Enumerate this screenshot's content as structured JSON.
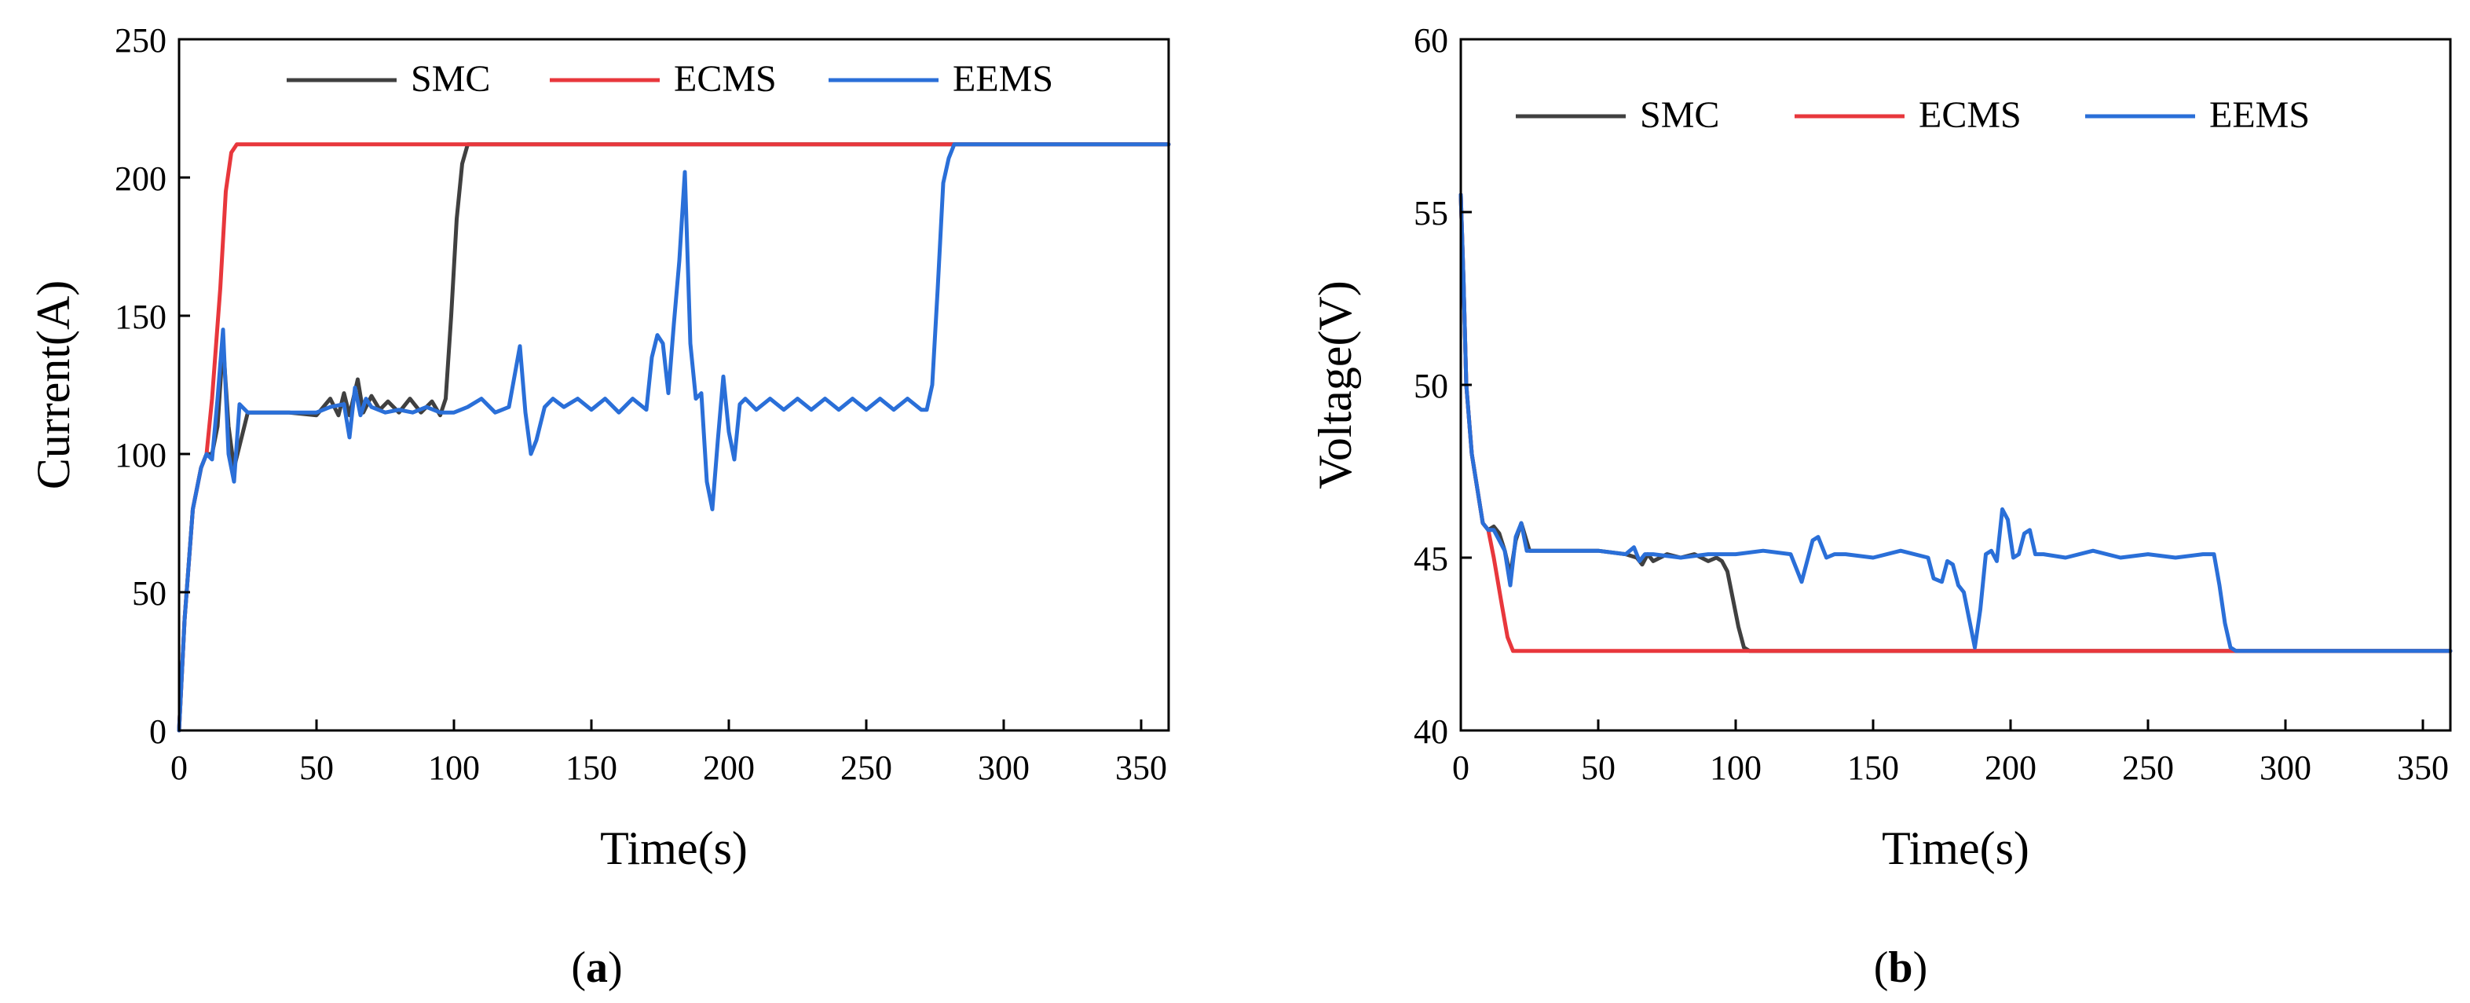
{
  "chart_data": [
    {
      "type": "line",
      "panel": "a",
      "caption_open": "(",
      "caption_letter": "a",
      "caption_close": ")",
      "title": "",
      "xlabel": "Time(s)",
      "ylabel": "Current(A)",
      "xlim": [
        0,
        360
      ],
      "ylim": [
        0,
        250
      ],
      "xticks": [
        0,
        50,
        100,
        150,
        200,
        250,
        300,
        350
      ],
      "yticks": [
        0,
        50,
        100,
        150,
        200,
        250
      ],
      "grid": false,
      "legend": "top-center",
      "series": [
        {
          "name": "SMC",
          "color": "#404040",
          "x": [
            0,
            2,
            5,
            8,
            10,
            12,
            14,
            16,
            18,
            20,
            25,
            30,
            40,
            50,
            55,
            58,
            60,
            62,
            65,
            67,
            70,
            73,
            76,
            80,
            84,
            88,
            92,
            95,
            97,
            99,
            101,
            103,
            105,
            110,
            360
          ],
          "y": [
            0,
            40,
            80,
            95,
            100,
            100,
            110,
            140,
            110,
            95,
            115,
            115,
            115,
            114,
            120,
            114,
            122,
            114,
            127,
            115,
            121,
            116,
            119,
            115,
            120,
            115,
            119,
            114,
            120,
            150,
            185,
            205,
            212,
            212,
            212
          ]
        },
        {
          "name": "ECMS",
          "color": "#e8373c",
          "x": [
            0,
            2,
            5,
            8,
            10,
            12,
            15,
            17,
            19,
            21,
            23,
            360
          ],
          "y": [
            0,
            40,
            80,
            95,
            100,
            120,
            160,
            195,
            209,
            212,
            212,
            212
          ]
        },
        {
          "name": "EEMS",
          "color": "#2a6fd8",
          "x": [
            0,
            2,
            5,
            8,
            10,
            12,
            14,
            16,
            18,
            20,
            22,
            25,
            30,
            40,
            50,
            55,
            60,
            62,
            64,
            66,
            68,
            70,
            75,
            80,
            85,
            90,
            95,
            100,
            105,
            110,
            115,
            120,
            124,
            126,
            128,
            130,
            133,
            136,
            140,
            145,
            150,
            155,
            160,
            165,
            170,
            172,
            174,
            176,
            178,
            180,
            182,
            184,
            186,
            188,
            190,
            192,
            194,
            196,
            198,
            200,
            202,
            204,
            206,
            210,
            215,
            220,
            225,
            230,
            235,
            240,
            245,
            250,
            255,
            260,
            265,
            270,
            272,
            274,
            276,
            278,
            280,
            282,
            284,
            286,
            290,
            300,
            360
          ],
          "y": [
            0,
            40,
            80,
            95,
            100,
            98,
            120,
            145,
            100,
            90,
            118,
            115,
            115,
            115,
            115,
            117,
            118,
            106,
            124,
            114,
            120,
            117,
            115,
            116,
            115,
            117,
            115,
            115,
            117,
            120,
            115,
            117,
            139,
            115,
            100,
            105,
            117,
            120,
            117,
            120,
            116,
            120,
            115,
            120,
            116,
            135,
            143,
            140,
            122,
            147,
            170,
            202,
            140,
            120,
            122,
            90,
            80,
            105,
            128,
            108,
            98,
            118,
            120,
            116,
            120,
            116,
            120,
            116,
            120,
            116,
            120,
            116,
            120,
            116,
            120,
            116,
            116,
            125,
            160,
            198,
            207,
            212,
            212,
            212,
            212,
            212,
            212
          ]
        }
      ]
    },
    {
      "type": "line",
      "panel": "b",
      "caption_open": "(",
      "caption_letter": "b",
      "caption_close": ")",
      "title": "",
      "xlabel": "Time(s)",
      "ylabel": "Voltage(V)",
      "xlim": [
        0,
        360
      ],
      "ylim": [
        40,
        60
      ],
      "xticks": [
        0,
        50,
        100,
        150,
        200,
        250,
        300,
        350
      ],
      "yticks": [
        40,
        45,
        50,
        55,
        60
      ],
      "grid": false,
      "legend": "top-center",
      "series": [
        {
          "name": "SMC",
          "color": "#404040",
          "x": [
            0,
            1,
            2,
            4,
            6,
            8,
            10,
            12,
            14,
            16,
            18,
            20,
            22,
            25,
            30,
            40,
            50,
            60,
            64,
            66,
            68,
            70,
            75,
            80,
            85,
            90,
            93,
            95,
            97,
            99,
            101,
            103,
            105,
            360
          ],
          "y": [
            55.5,
            53,
            50,
            48,
            47,
            46,
            45.8,
            45.9,
            45.7,
            45.2,
            44.5,
            45.5,
            46,
            45.2,
            45.2,
            45.2,
            45.2,
            45.1,
            45,
            44.8,
            45.1,
            44.9,
            45.1,
            45,
            45.1,
            44.9,
            45,
            44.9,
            44.6,
            43.8,
            43,
            42.4,
            42.3,
            42.3
          ]
        },
        {
          "name": "ECMS",
          "color": "#e8373c",
          "x": [
            0,
            1,
            2,
            4,
            6,
            8,
            10,
            12,
            15,
            17,
            19,
            21,
            360
          ],
          "y": [
            55.5,
            53,
            50,
            48,
            47,
            46,
            45.8,
            45,
            43.6,
            42.7,
            42.3,
            42.3,
            42.3
          ]
        },
        {
          "name": "EEMS",
          "color": "#2a6fd8",
          "x": [
            0,
            1,
            2,
            4,
            6,
            8,
            10,
            12,
            14,
            16,
            18,
            20,
            22,
            24,
            26,
            30,
            40,
            50,
            60,
            63,
            65,
            67,
            70,
            80,
            90,
            100,
            110,
            120,
            124,
            126,
            128,
            130,
            133,
            136,
            140,
            150,
            160,
            170,
            172,
            175,
            177,
            179,
            181,
            183,
            185,
            187,
            189,
            191,
            193,
            195,
            197,
            199,
            201,
            203,
            205,
            207,
            209,
            212,
            220,
            230,
            240,
            250,
            260,
            270,
            274,
            276,
            278,
            280,
            282,
            284,
            286,
            290,
            300,
            360
          ],
          "y": [
            55.5,
            53,
            50,
            48,
            47,
            46,
            45.8,
            45.8,
            45.5,
            45.2,
            44.2,
            45.6,
            46,
            45.2,
            45.2,
            45.2,
            45.2,
            45.2,
            45.1,
            45.3,
            44.9,
            45.1,
            45.1,
            45,
            45.1,
            45.1,
            45.2,
            45.1,
            44.3,
            44.9,
            45.5,
            45.6,
            45,
            45.1,
            45.1,
            45,
            45.2,
            45,
            44.4,
            44.3,
            44.9,
            44.8,
            44.2,
            44,
            43.2,
            42.4,
            43.5,
            45.1,
            45.2,
            44.9,
            46.4,
            46.1,
            45,
            45.1,
            45.7,
            45.8,
            45.1,
            45.1,
            45,
            45.2,
            45,
            45.1,
            45,
            45.1,
            45.1,
            44.2,
            43.1,
            42.4,
            42.3,
            42.3,
            42.3,
            42.3,
            42.3,
            42.3
          ]
        }
      ]
    }
  ]
}
